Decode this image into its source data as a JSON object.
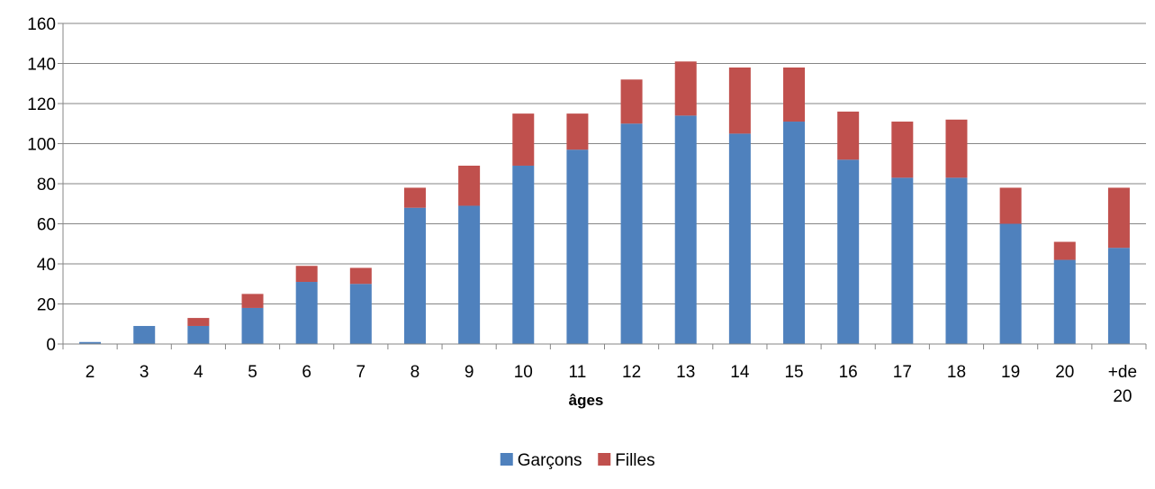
{
  "chart_data": {
    "type": "bar",
    "stacked": true,
    "categories": [
      "2",
      "3",
      "4",
      "5",
      "6",
      "7",
      "8",
      "9",
      "10",
      "11",
      "12",
      "13",
      "14",
      "15",
      "16",
      "17",
      "18",
      "19",
      "20",
      "+de 20"
    ],
    "series": [
      {
        "name": "Garçons",
        "color": "#4F81BD",
        "values": [
          1,
          9,
          9,
          18,
          31,
          30,
          68,
          69,
          89,
          97,
          110,
          114,
          105,
          111,
          92,
          83,
          83,
          60,
          42,
          48
        ]
      },
      {
        "name": "Filles",
        "color": "#C0504D",
        "values": [
          0,
          0,
          4,
          7,
          8,
          8,
          10,
          20,
          26,
          18,
          22,
          27,
          33,
          27,
          24,
          28,
          29,
          18,
          9,
          30
        ]
      }
    ],
    "xlabel": "âges",
    "ylabel": "",
    "ylim": [
      0,
      160
    ],
    "yticks": [
      0,
      20,
      40,
      60,
      80,
      100,
      120,
      140,
      160
    ],
    "grid": true,
    "legend": "bottom-center"
  }
}
